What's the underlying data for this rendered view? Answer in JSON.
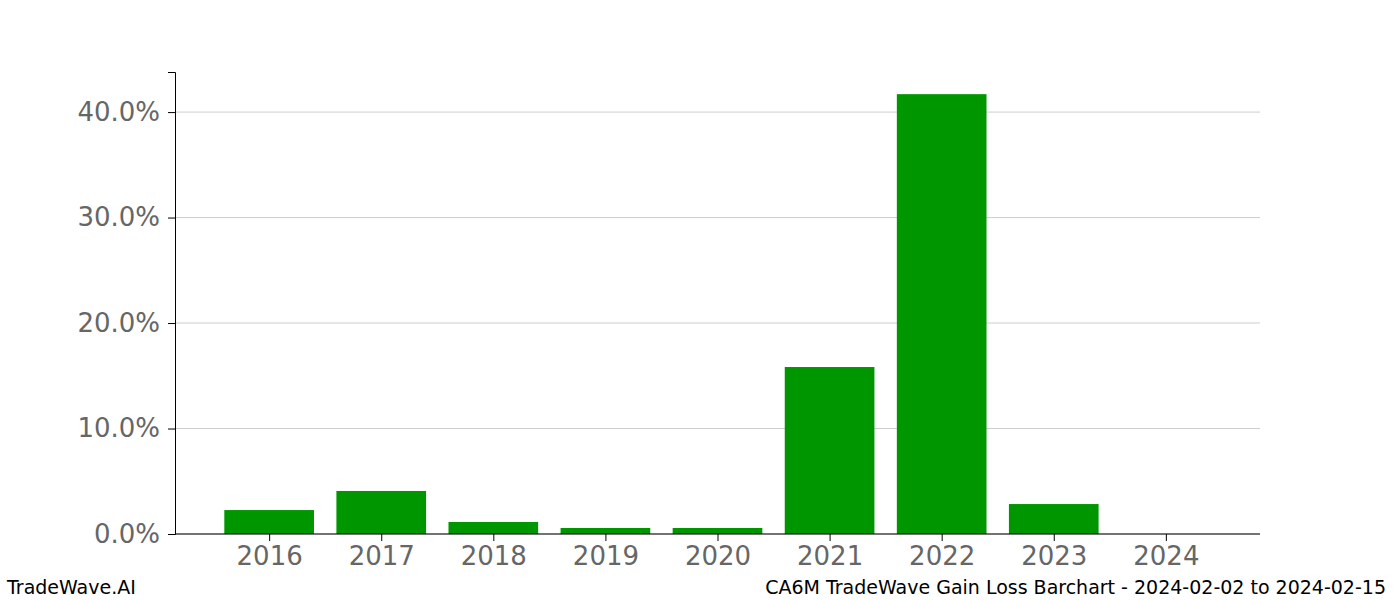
{
  "chart_data": {
    "type": "bar",
    "title": "CA6M TradeWave Gain Loss Barchart - 2024-02-02 to 2024-02-15",
    "source": "TradeWave.AI",
    "categories": [
      "2016",
      "2017",
      "2018",
      "2019",
      "2020",
      "2021",
      "2022",
      "2023",
      "2024"
    ],
    "values": [
      2.27,
      4.08,
      1.14,
      0.57,
      0.57,
      15.83,
      41.7,
      2.84,
      0
    ],
    "color": "#009600",
    "ylim": [
      0,
      43.8
    ],
    "yticks": [
      {
        "value": 0,
        "label": "0.0%"
      },
      {
        "value": 10,
        "label": "10.0%"
      },
      {
        "value": 20,
        "label": "20.0%"
      },
      {
        "value": 30,
        "label": "30.0%"
      },
      {
        "value": 40,
        "label": "40.0%"
      }
    ],
    "grid": true
  }
}
